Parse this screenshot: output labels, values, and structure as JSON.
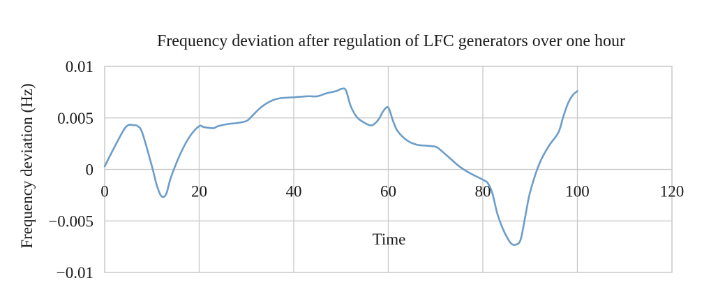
{
  "chart_data": {
    "type": "line",
    "title": "Frequency deviation after regulation of LFC generators over one hour",
    "xlabel": "Time",
    "ylabel": "Frequency deviation (Hz)",
    "xlim": [
      0,
      120
    ],
    "ylim": [
      -0.01,
      0.01
    ],
    "x_ticks": [
      0,
      20,
      40,
      60,
      80,
      100,
      120
    ],
    "x_tick_labels": [
      "0",
      "20",
      "40",
      "60",
      "80",
      "100",
      "120"
    ],
    "y_ticks": [
      0.01,
      0.005,
      0,
      -0.005,
      -0.01
    ],
    "y_tick_labels": [
      "0.01",
      "0.005",
      "0",
      "−0.005",
      "−0.01"
    ],
    "grid": true,
    "legend": "none",
    "series_color": "#6b9dc8",
    "series": [
      {
        "x": [
          0,
          2,
          4,
          5,
          6,
          7,
          8,
          10,
          11,
          12,
          13,
          14,
          16,
          18,
          20,
          21,
          23,
          24,
          26,
          28,
          30,
          31,
          33,
          35,
          37,
          40,
          43,
          45,
          47,
          49,
          50,
          51,
          52,
          53,
          54,
          56,
          57,
          58,
          59,
          60,
          61,
          62,
          64,
          66,
          68,
          70,
          71,
          73,
          75,
          77,
          80,
          81,
          82,
          83,
          84,
          85,
          86,
          87,
          88,
          89,
          90,
          92,
          94,
          96,
          97,
          98,
          99,
          100
        ],
        "y": [
          0.0003,
          0.0021,
          0.0038,
          0.0043,
          0.0043,
          0.0042,
          0.0035,
          0.0003,
          -0.0015,
          -0.0026,
          -0.0024,
          -0.0008,
          0.0015,
          0.0032,
          0.0042,
          0.0041,
          0.004,
          0.0042,
          0.0044,
          0.0045,
          0.0047,
          0.0051,
          0.006,
          0.0066,
          0.0069,
          0.007,
          0.0071,
          0.0071,
          0.0074,
          0.0076,
          0.0078,
          0.0077,
          0.0062,
          0.0053,
          0.0048,
          0.0043,
          0.0044,
          0.0049,
          0.0057,
          0.006,
          0.0047,
          0.0037,
          0.0028,
          0.0024,
          0.0023,
          0.0022,
          0.0019,
          0.0011,
          0.0003,
          -0.0003,
          -0.001,
          -0.0013,
          -0.0023,
          -0.0042,
          -0.0055,
          -0.0065,
          -0.0072,
          -0.0073,
          -0.0068,
          -0.0045,
          -0.0022,
          0.0006,
          0.0023,
          0.0036,
          0.0051,
          0.0064,
          0.0072,
          0.0076
        ]
      }
    ]
  }
}
